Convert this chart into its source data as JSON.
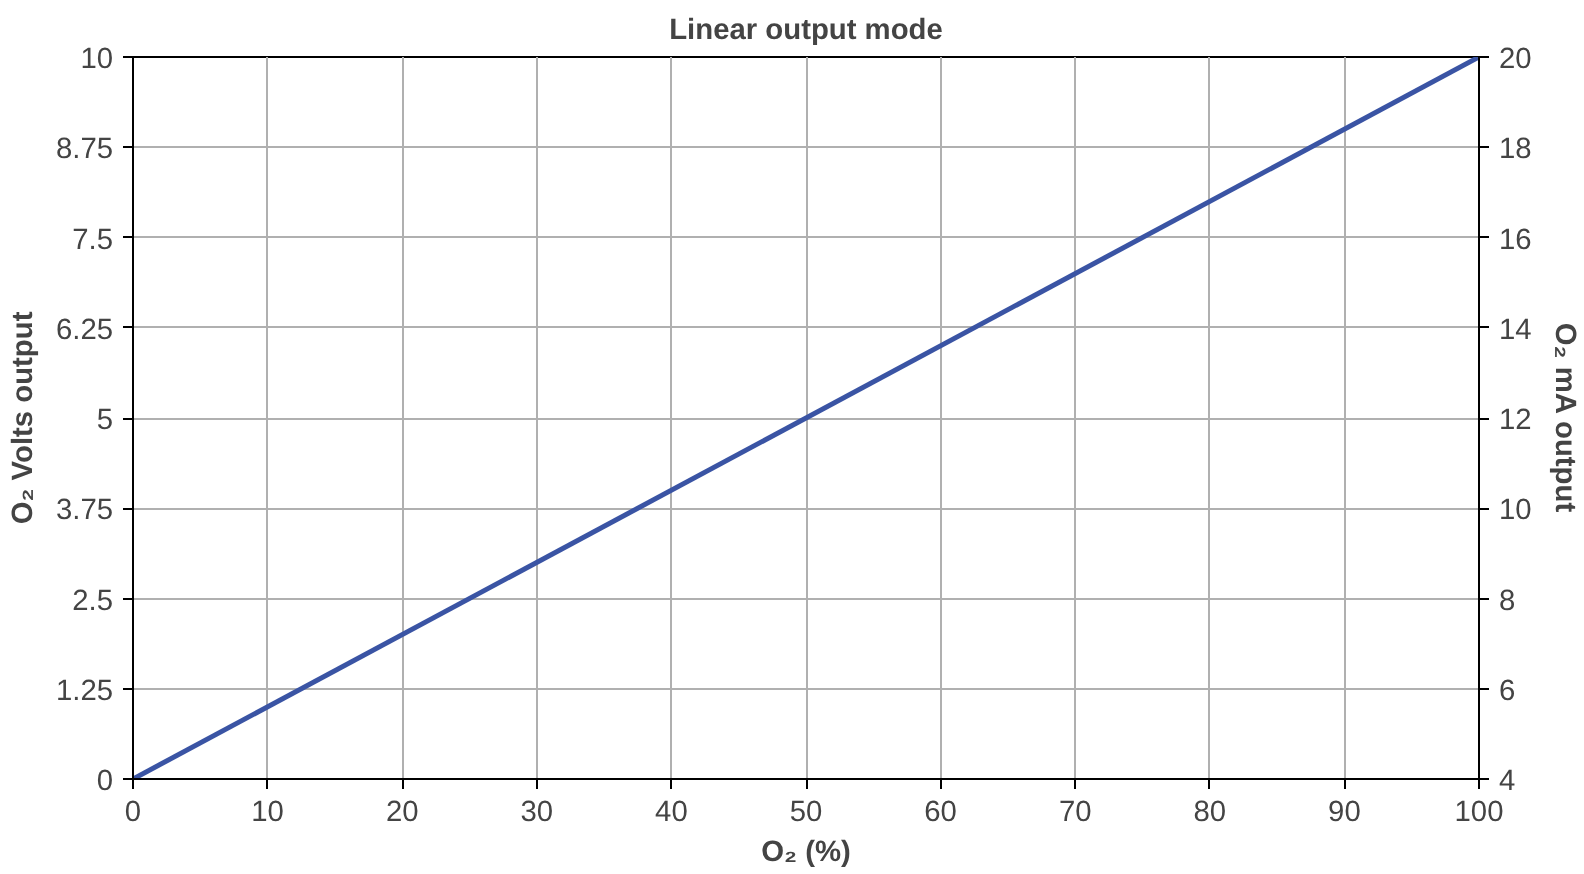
{
  "chart_data": {
    "type": "line",
    "title": "Linear output mode",
    "xlabel": "O₂ (%)",
    "ylabel": "O₂ Volts output",
    "y2label": "O₂ mA output",
    "x": [
      0,
      100
    ],
    "series": [
      {
        "color": "#3a54a4",
        "values": [
          0,
          10
        ]
      }
    ],
    "xlim": [
      0,
      100
    ],
    "xticks": [
      0,
      10,
      20,
      30,
      40,
      50,
      60,
      70,
      80,
      90,
      100
    ],
    "ylim": [
      0,
      10
    ],
    "yticks": [
      0,
      1.25,
      2.5,
      3.75,
      5,
      6.25,
      7.5,
      8.75,
      10
    ],
    "y2lim": [
      4,
      20
    ],
    "y2ticks": [
      4,
      6,
      8,
      10,
      12,
      14,
      16,
      18,
      20
    ],
    "grid": true,
    "marker": "none",
    "line_style": "solid"
  }
}
